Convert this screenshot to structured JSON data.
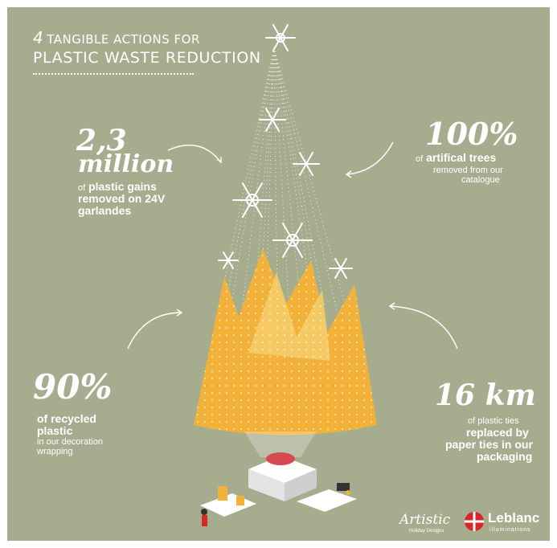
{
  "header": {
    "number": "4",
    "line1": "TANGIBLE ACTIONS FOR",
    "line2": "PLASTIC WASTE REDUCTION"
  },
  "stats": {
    "garlands": {
      "value_line1": "2,3",
      "value_line2": "million",
      "prefix": "of",
      "bold1": "plastic gains",
      "bold2": "removed on 24V",
      "bold3": "garlandes"
    },
    "trees": {
      "value": "100%",
      "prefix": "of",
      "bold": "artifical trees",
      "rest1": "removed from our",
      "rest2": "catalogue"
    },
    "recycled": {
      "value": "90%",
      "bold1": "of recycled",
      "bold2": "plastic",
      "rest1": "in our decoration",
      "rest2": "wrapping"
    },
    "ties": {
      "value": "16 km",
      "rest": "of plastic ties",
      "bold1": "replaced by",
      "bold2": "paper ties in our",
      "bold3": "packaging"
    }
  },
  "logos": {
    "artistic": "Artistic",
    "artistic_sub": "Holiday Designs",
    "leblanc": "Leblanc",
    "leblanc_sub": "illuminations"
  },
  "colors": {
    "background": "#a6ad8f",
    "tree_orange": "#f2b23a",
    "tree_light": "#f6cd6b",
    "logo_red": "#d9262b"
  }
}
